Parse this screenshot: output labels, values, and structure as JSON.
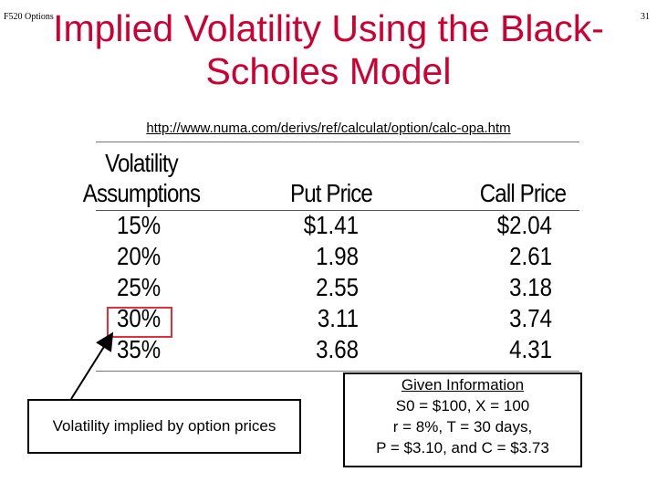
{
  "header": {
    "course": "F520 Options",
    "page_number": "31"
  },
  "title": {
    "line1": "Implied Volatility Using the Black-",
    "line2": "Scholes Model"
  },
  "url": "http://www.numa.com/derivs/ref/calculat/option/calc-opa.htm",
  "table": {
    "headers": {
      "volatility_line1": "Volatility",
      "volatility_line2": "Assumptions",
      "put": "Put Price",
      "call": "Call Price"
    },
    "rows": [
      {
        "vol": "15%",
        "put": "$1.41",
        "call": "$2.04"
      },
      {
        "vol": "20%",
        "put": "1.98",
        "call": "2.61"
      },
      {
        "vol": "25%",
        "put": "2.55",
        "call": "3.18"
      },
      {
        "vol": "30%",
        "put": "3.11",
        "call": "3.74"
      },
      {
        "vol": "35%",
        "put": "3.68",
        "call": "4.31"
      }
    ],
    "highlighted_row": "30%",
    "highlight_color": "#e03040"
  },
  "callout_left": "Volatility implied by option prices",
  "given": {
    "heading": "Given Information",
    "line1": "S0 = $100, X = 100",
    "line2": "r = 8%, T = 30 days,",
    "line3": "P = $3.10, and C = $3.73"
  },
  "colors": {
    "title": "#cc0033"
  }
}
